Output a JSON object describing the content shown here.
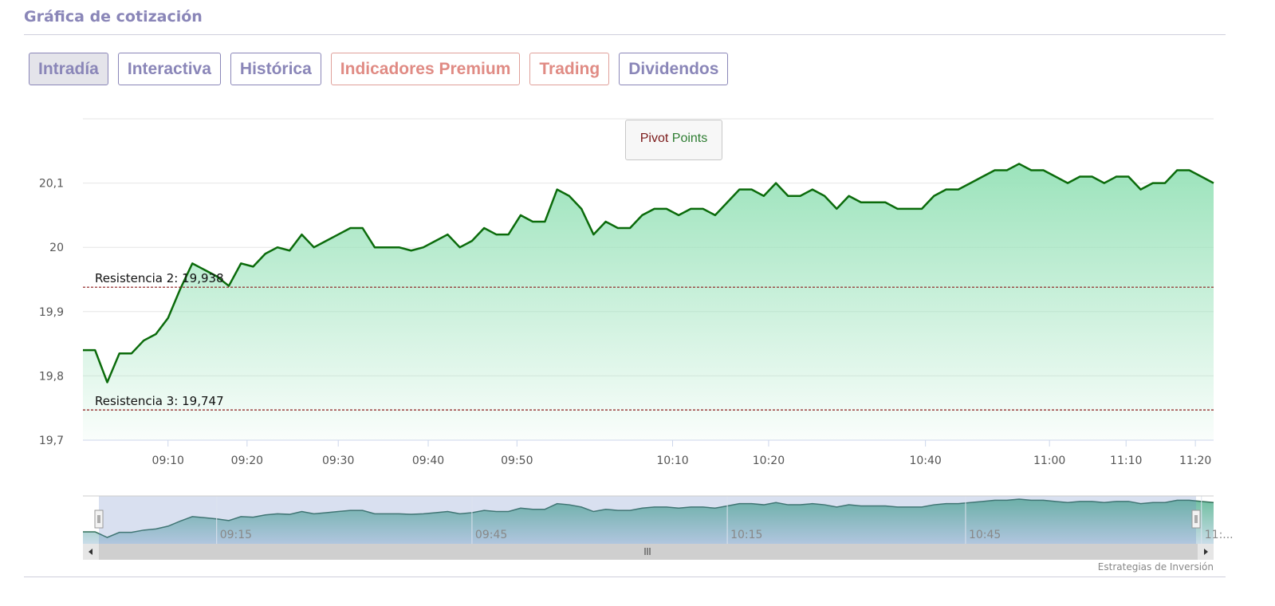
{
  "title": "Gráfica de cotización",
  "tabs": [
    {
      "label": "Intradía",
      "active": true
    },
    {
      "label": "Interactiva"
    },
    {
      "label": "Histórica"
    },
    {
      "label": "Indicadores Premium",
      "premium": true
    },
    {
      "label": "Trading",
      "premium": true
    },
    {
      "label": "Dividendos"
    }
  ],
  "pivot_button": {
    "word1": "Pivot",
    "word2": "Points",
    "color1": "#7b1a1a",
    "color2": "#2e7d32"
  },
  "credits": "Estrategias de Inversión",
  "chart_data": {
    "type": "area",
    "ylim": [
      19.7,
      20.2
    ],
    "yticks": [
      {
        "v": 19.7,
        "label": "19,7"
      },
      {
        "v": 19.8,
        "label": "19,8"
      },
      {
        "v": 19.9,
        "label": "19,9"
      },
      {
        "v": 20.0,
        "label": "20"
      },
      {
        "v": 20.1,
        "label": "20,1"
      }
    ],
    "xticks": [
      {
        "i": 7,
        "label": "09:10"
      },
      {
        "i": 13.5,
        "label": "09:20"
      },
      {
        "i": 21,
        "label": "09:30"
      },
      {
        "i": 28.4,
        "label": "09:40"
      },
      {
        "i": 35.7,
        "label": "09:50"
      },
      {
        "i": 48.5,
        "label": "10:10"
      },
      {
        "i": 56.4,
        "label": "10:20"
      },
      {
        "i": 69.3,
        "label": "10:40"
      },
      {
        "i": 79.5,
        "label": "11:00"
      },
      {
        "i": 85.8,
        "label": "11:10"
      },
      {
        "i": 91.5,
        "label": "11:20"
      }
    ],
    "values": [
      19.84,
      19.84,
      19.79,
      19.835,
      19.835,
      19.855,
      19.865,
      19.89,
      19.935,
      19.975,
      19.965,
      19.955,
      19.94,
      19.975,
      19.97,
      19.99,
      20.0,
      19.995,
      20.02,
      20.0,
      20.01,
      20.02,
      20.03,
      20.03,
      20.0,
      20.0,
      20.0,
      19.995,
      20.0,
      20.01,
      20.02,
      20.0,
      20.01,
      20.03,
      20.02,
      20.02,
      20.05,
      20.04,
      20.04,
      20.09,
      20.08,
      20.06,
      20.02,
      20.04,
      20.03,
      20.03,
      20.05,
      20.06,
      20.06,
      20.05,
      20.06,
      20.06,
      20.05,
      20.07,
      20.09,
      20.09,
      20.08,
      20.1,
      20.08,
      20.08,
      20.09,
      20.08,
      20.06,
      20.08,
      20.07,
      20.07,
      20.07,
      20.06,
      20.06,
      20.06,
      20.08,
      20.09,
      20.09,
      20.1,
      20.11,
      20.12,
      20.12,
      20.13,
      20.12,
      20.12,
      20.11,
      20.1,
      20.11,
      20.11,
      20.1,
      20.11,
      20.11,
      20.09,
      20.1,
      20.1,
      20.12,
      20.12,
      20.11,
      20.1
    ],
    "line_color": "#0b6b0b",
    "fill_color": "#9be3bb",
    "plotlines": [
      {
        "value": 19.938,
        "label": "Resistencia 2: 19,938",
        "color": "#8b1a1a"
      },
      {
        "value": 19.747,
        "label": "Resistencia 3: 19,747",
        "color": "#8b1a1a"
      }
    ],
    "navigator": {
      "ticks": [
        {
          "i": 11,
          "label": "09:15"
        },
        {
          "i": 32,
          "label": "09:45"
        },
        {
          "i": 53,
          "label": "10:15"
        },
        {
          "i": 72.6,
          "label": "10:45"
        },
        {
          "i": 92,
          "label": "11:..."
        }
      ]
    }
  }
}
